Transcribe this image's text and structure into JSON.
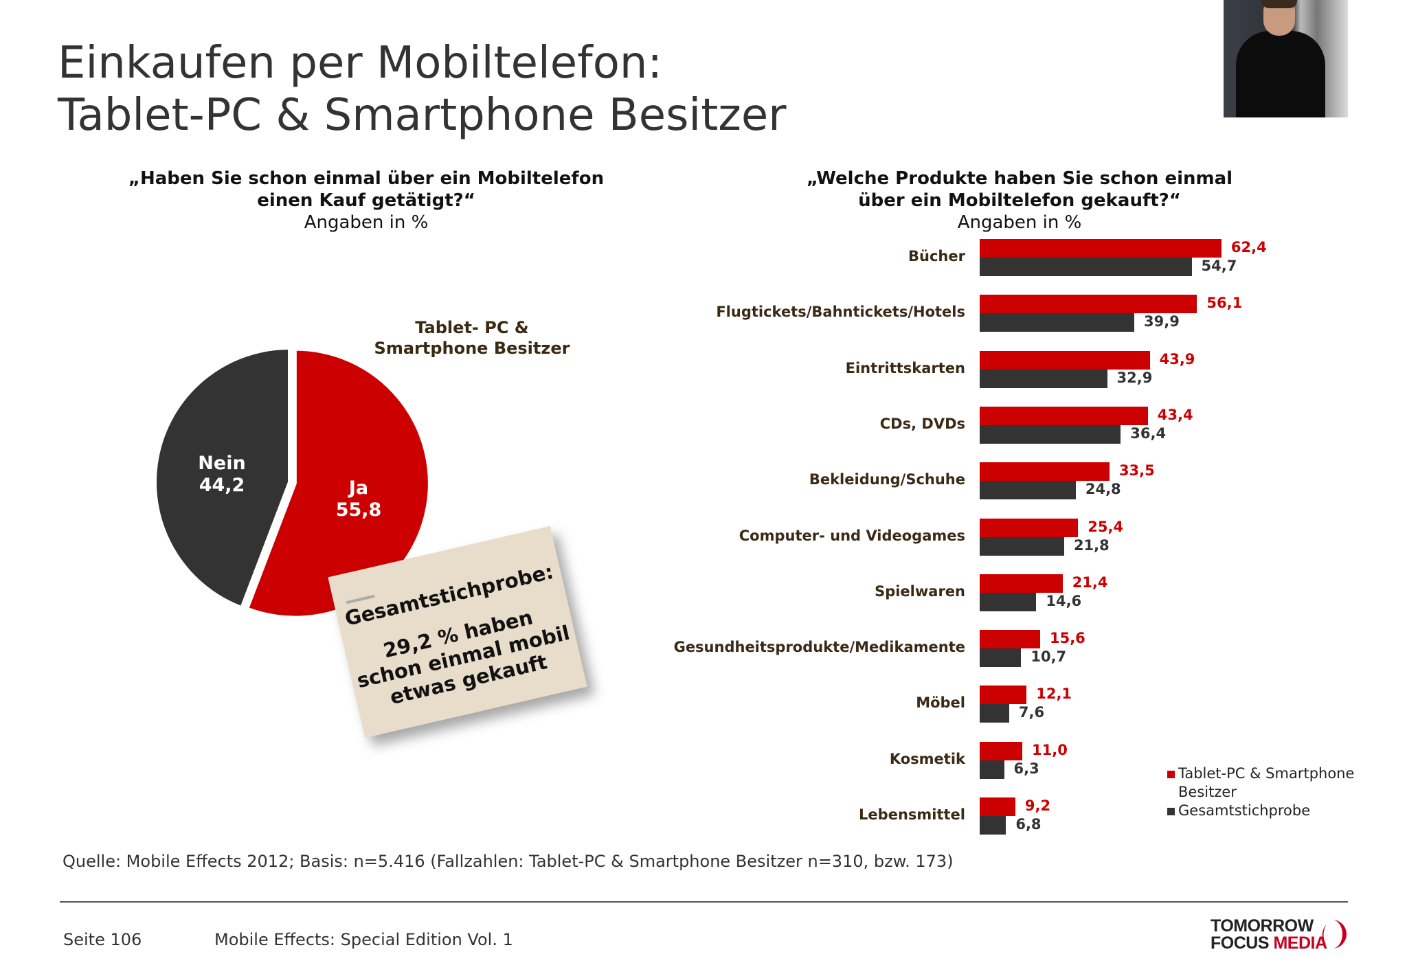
{
  "title": {
    "line1": "Einkaufen per Mobiltelefon:",
    "line2": "Tablet-PC & Smartphone Besitzer"
  },
  "left_question": {
    "line1": "„Haben Sie schon einmal über ein Mobiltelefon",
    "line2": "einen Kauf getätigt?“",
    "unit": "Angaben in %"
  },
  "right_question": {
    "line1": "„Welche Produkte haben Sie schon einmal",
    "line2": "über ein Mobiltelefon gekauft?“",
    "unit": "Angaben in %"
  },
  "note": {
    "heading": "Gesamtstichprobe:",
    "line1": "29,2 % haben",
    "line2": "schon einmal mobil",
    "line3": "etwas gekauft"
  },
  "colors": {
    "red": "#cc0000",
    "dark": "#333333"
  },
  "chart_data": [
    {
      "type": "pie",
      "title": "Tablet- PC & Smartphone Besitzer",
      "slices": [
        {
          "label": "Ja",
          "value": 55.8,
          "value_label": "55,8",
          "color": "#cc0000"
        },
        {
          "label": "Nein",
          "value": 44.2,
          "value_label": "44,2",
          "color": "#333333"
        }
      ]
    },
    {
      "type": "bar",
      "orientation": "horizontal",
      "categories": [
        "Bücher",
        "Flugtickets/Bahntickets/Hotels",
        "Eintrittskarten",
        "CDs, DVDs",
        "Bekleidung/Schuhe",
        "Computer- und Videogames",
        "Spielwaren",
        "Gesundheitsprodukte/Medikamente",
        "Möbel",
        "Kosmetik",
        "Lebensmittel"
      ],
      "series": [
        {
          "name": "Tablet-PC & Smartphone Besitzer",
          "color": "#cc0000",
          "values": [
            62.4,
            56.1,
            43.9,
            43.4,
            33.5,
            25.4,
            21.4,
            15.6,
            12.1,
            11.0,
            9.2
          ],
          "labels": [
            "62,4",
            "56,1",
            "43,9",
            "43,4",
            "33,5",
            "25,4",
            "21,4",
            "15,6",
            "12,1",
            "11,0",
            "9,2"
          ]
        },
        {
          "name": "Gesamtstichprobe",
          "color": "#333333",
          "values": [
            54.7,
            39.9,
            32.9,
            36.4,
            24.8,
            21.8,
            14.6,
            10.7,
            7.6,
            6.3,
            6.8
          ],
          "labels": [
            "54,7",
            "39,9",
            "32,9",
            "36,4",
            "24,8",
            "21,8",
            "14,6",
            "10,7",
            "7,6",
            "6,3",
            "6,8"
          ]
        }
      ],
      "legend": {
        "position": "bottom-right",
        "items": [
          "Tablet-PC & Smartphone",
          "Besitzer",
          "Gesamtstichprobe"
        ]
      }
    }
  ],
  "source": "Quelle: Mobile Effects 2012; Basis: n=5.416 (Fallzahlen: Tablet-PC & Smartphone Besitzer n=310, bzw. 173)",
  "footer": {
    "page": "Seite 106",
    "edition": "Mobile Effects: Special Edition Vol. 1"
  },
  "logo": {
    "line1": "TOMORROW",
    "line2a": "FOCUS",
    "line2b": "MEDIA"
  }
}
